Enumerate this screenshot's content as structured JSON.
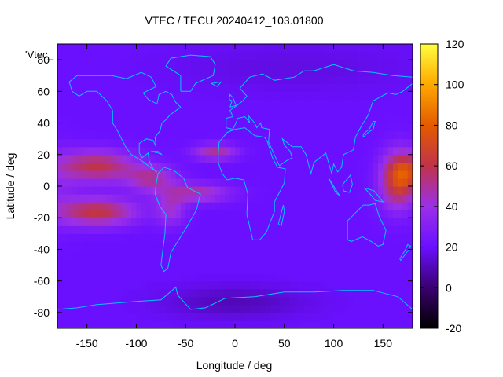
{
  "chart_data": {
    "type": "heatmap",
    "title": "VTEC / TECU 20240412_103.01800",
    "xlabel": "Longitude / deg",
    "ylabel": "Latitude / deg",
    "legend_entry": "'Vtec_",
    "xlim": [
      -180,
      180
    ],
    "ylim": [
      -90,
      90
    ],
    "x_ticks": [
      -150,
      -100,
      -50,
      0,
      50,
      100,
      150
    ],
    "y_ticks": [
      -80,
      -60,
      -40,
      -20,
      0,
      20,
      40,
      60,
      80
    ],
    "colorbar": {
      "range": [
        -20,
        120
      ],
      "ticks": [
        -20,
        0,
        20,
        40,
        60,
        80,
        100,
        120
      ],
      "colormap": [
        "#000000",
        "#3a0070",
        "#6a10ff",
        "#9b30e8",
        "#c0334a",
        "#e45a00",
        "#ffa800",
        "#ffff40"
      ]
    },
    "grid_resolution": {
      "lon_step_deg": 5,
      "lat_step_deg": 5
    },
    "background_tec": 20,
    "features": [
      {
        "name": "American equatorial crest north",
        "lon": -150,
        "lat": 12,
        "peak": 72
      },
      {
        "name": "American equatorial crest south",
        "lon": -130,
        "lat": -18,
        "peak": 75
      },
      {
        "name": "Atlantic northern band",
        "lon": -20,
        "lat": 22,
        "peak": 60
      },
      {
        "name": "Atlantic southern band",
        "lon": -40,
        "lat": -5,
        "peak": 55
      },
      {
        "name": "West Pacific crest",
        "lon": 160,
        "lat": 0,
        "peak": 70
      },
      {
        "name": "Antarctic low",
        "lon": 0,
        "lat": -72,
        "peak": 10
      }
    ],
    "coastline_color": "#00c8ff"
  }
}
